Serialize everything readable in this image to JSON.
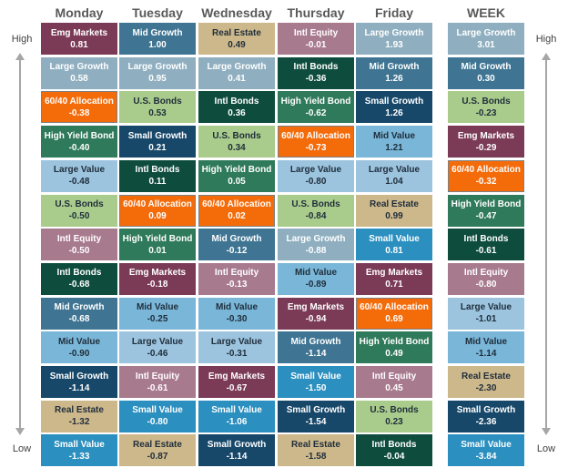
{
  "columns": [
    "Monday",
    "Tuesday",
    "Wednesday",
    "Thursday",
    "Friday",
    "WEEK"
  ],
  "side_labels": {
    "high": "High",
    "low": "Low"
  },
  "colors": {
    "Emg Markets": "#7b3a56",
    "Large Growth": "#8fafc0",
    "60/40 Allocation": "#f46b0a",
    "High Yield Bond": "#2f7a5a",
    "Large Value": "#9cc4df",
    "U.S. Bonds": "#a9cc8c",
    "Intl Equity": "#a87a8e",
    "Intl Bonds": "#0e4d3e",
    "Mid Growth": "#3f7593",
    "Mid Value": "#7ab6d8",
    "Small Growth": "#17486a",
    "Real Estate": "#cdb88c",
    "Small Value": "#2b8fbf"
  },
  "dark_text": [
    "Large Value",
    "U.S. Bonds",
    "Mid Value",
    "Real Estate"
  ],
  "chart_data": {
    "type": "table",
    "ranking": "High to Low",
    "data": {
      "Monday": [
        {
          "name": "Emg Markets",
          "value": "0.81"
        },
        {
          "name": "Large Growth",
          "value": "0.58"
        },
        {
          "name": "60/40 Allocation",
          "value": "-0.38"
        },
        {
          "name": "High Yield Bond",
          "value": "-0.40"
        },
        {
          "name": "Large Value",
          "value": "-0.48"
        },
        {
          "name": "U.S. Bonds",
          "value": "-0.50"
        },
        {
          "name": "Intl Equity",
          "value": "-0.50"
        },
        {
          "name": "Intl Bonds",
          "value": "-0.68"
        },
        {
          "name": "Mid Growth",
          "value": "-0.68"
        },
        {
          "name": "Mid Value",
          "value": "-0.90"
        },
        {
          "name": "Small Growth",
          "value": "-1.14"
        },
        {
          "name": "Real Estate",
          "value": "-1.32"
        },
        {
          "name": "Small Value",
          "value": "-1.33"
        }
      ],
      "Tuesday": [
        {
          "name": "Mid Growth",
          "value": "1.00"
        },
        {
          "name": "Large Growth",
          "value": "0.95"
        },
        {
          "name": "U.S. Bonds",
          "value": "0.53"
        },
        {
          "name": "Small Growth",
          "value": "0.21"
        },
        {
          "name": "Intl Bonds",
          "value": "0.11"
        },
        {
          "name": "60/40 Allocation",
          "value": "0.09"
        },
        {
          "name": "High Yield Bond",
          "value": "0.01"
        },
        {
          "name": "Emg Markets",
          "value": "-0.18"
        },
        {
          "name": "Mid Value",
          "value": "-0.25"
        },
        {
          "name": "Large Value",
          "value": "-0.46"
        },
        {
          "name": "Intl Equity",
          "value": "-0.61"
        },
        {
          "name": "Small Value",
          "value": "-0.80"
        },
        {
          "name": "Real Estate",
          "value": "-0.87"
        }
      ],
      "Wednesday": [
        {
          "name": "Real Estate",
          "value": "0.49"
        },
        {
          "name": "Large Growth",
          "value": "0.41"
        },
        {
          "name": "Intl Bonds",
          "value": "0.36"
        },
        {
          "name": "U.S. Bonds",
          "value": "0.34"
        },
        {
          "name": "High Yield Bond",
          "value": "0.05"
        },
        {
          "name": "60/40 Allocation",
          "value": "0.02"
        },
        {
          "name": "Mid Growth",
          "value": "-0.12"
        },
        {
          "name": "Intl Equity",
          "value": "-0.13"
        },
        {
          "name": "Mid Value",
          "value": "-0.30"
        },
        {
          "name": "Large Value",
          "value": "-0.31"
        },
        {
          "name": "Emg Markets",
          "value": "-0.67"
        },
        {
          "name": "Small Value",
          "value": "-1.06"
        },
        {
          "name": "Small Growth",
          "value": "-1.14"
        }
      ],
      "Thursday": [
        {
          "name": "Intl Equity",
          "value": "-0.01"
        },
        {
          "name": "Intl Bonds",
          "value": "-0.36"
        },
        {
          "name": "High Yield Bond",
          "value": "-0.62"
        },
        {
          "name": "60/40 Allocation",
          "value": "-0.73"
        },
        {
          "name": "Large Value",
          "value": "-0.80"
        },
        {
          "name": "U.S. Bonds",
          "value": "-0.84"
        },
        {
          "name": "Large Growth",
          "value": "-0.88"
        },
        {
          "name": "Mid Value",
          "value": "-0.89"
        },
        {
          "name": "Emg Markets",
          "value": "-0.94"
        },
        {
          "name": "Mid Growth",
          "value": "-1.14"
        },
        {
          "name": "Small Value",
          "value": "-1.50"
        },
        {
          "name": "Small Growth",
          "value": "-1.54"
        },
        {
          "name": "Real Estate",
          "value": "-1.58"
        }
      ],
      "Friday": [
        {
          "name": "Large Growth",
          "value": "1.93"
        },
        {
          "name": "Mid Growth",
          "value": "1.26"
        },
        {
          "name": "Small Growth",
          "value": "1.26"
        },
        {
          "name": "Mid Value",
          "value": "1.21"
        },
        {
          "name": "Large Value",
          "value": "1.04"
        },
        {
          "name": "Real Estate",
          "value": "0.99"
        },
        {
          "name": "Small Value",
          "value": "0.81"
        },
        {
          "name": "Emg Markets",
          "value": "0.71"
        },
        {
          "name": "60/40 Allocation",
          "value": "0.69"
        },
        {
          "name": "High Yield Bond",
          "value": "0.49"
        },
        {
          "name": "Intl Equity",
          "value": "0.45"
        },
        {
          "name": "U.S. Bonds",
          "value": "0.23"
        },
        {
          "name": "Intl Bonds",
          "value": "-0.04"
        }
      ],
      "WEEK": [
        {
          "name": "Large Growth",
          "value": "3.01"
        },
        {
          "name": "Mid Growth",
          "value": "0.30"
        },
        {
          "name": "U.S. Bonds",
          "value": "-0.23"
        },
        {
          "name": "Emg Markets",
          "value": "-0.29"
        },
        {
          "name": "60/40 Allocation",
          "value": "-0.32"
        },
        {
          "name": "High Yield Bond",
          "value": "-0.47"
        },
        {
          "name": "Intl Bonds",
          "value": "-0.61"
        },
        {
          "name": "Intl Equity",
          "value": "-0.80"
        },
        {
          "name": "Large Value",
          "value": "-1.01"
        },
        {
          "name": "Mid Value",
          "value": "-1.14"
        },
        {
          "name": "Real Estate",
          "value": "-2.30"
        },
        {
          "name": "Small Growth",
          "value": "-2.36"
        },
        {
          "name": "Small Value",
          "value": "-3.84"
        }
      ]
    }
  }
}
